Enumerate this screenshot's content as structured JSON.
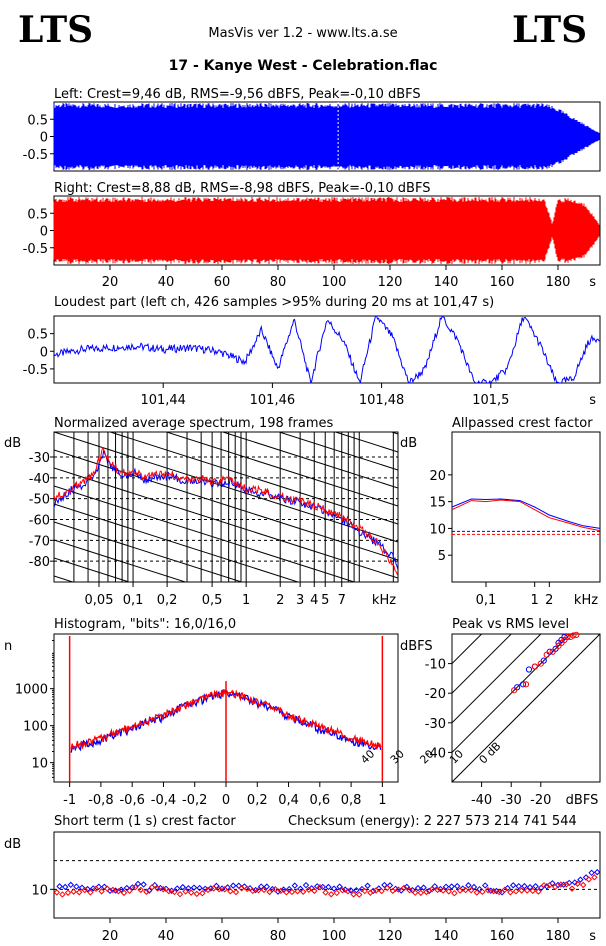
{
  "header": {
    "logo_left": "LTS",
    "logo_right": "LTS",
    "app_line": "MasVis ver 1.2 - www.lts.a.se",
    "track_title": "17 - Kanye West - Celebration.flac"
  },
  "colors": {
    "left": "#0000ff",
    "right": "#ff0000",
    "background": "#ffffff",
    "axis": "#000000"
  },
  "chart_data": [
    {
      "id": "left_waveform",
      "type": "area",
      "title": "Left: Crest=9,46 dB, RMS=-9,56 dBFS, Peak=-0,10 dBFS",
      "ylim": [
        -1,
        1
      ],
      "yticks": [
        "0.5",
        "0",
        "-0.5"
      ],
      "ytick_values": [
        0.5,
        0,
        -0.5
      ],
      "xlim": [
        0,
        195
      ],
      "marker_x": 101.47,
      "grid": false,
      "envelope_note_x": [
        0,
        175,
        180,
        185,
        190,
        195
      ],
      "envelope_amp": [
        1.0,
        1.0,
        0.85,
        0.6,
        0.35,
        0.1
      ]
    },
    {
      "id": "right_waveform",
      "type": "area",
      "title": "Right: Crest=8,88 dB, RMS=-8,98 dBFS, Peak=-0,10 dBFS",
      "ylim": [
        -1,
        1
      ],
      "yticks": [
        "0.5",
        "0",
        "-0.5"
      ],
      "ytick_values": [
        0.5,
        0,
        -0.5
      ],
      "xlim": [
        0,
        195
      ],
      "xticks": [
        "20",
        "40",
        "60",
        "80",
        "100",
        "120",
        "140",
        "160",
        "180"
      ],
      "xtick_values": [
        20,
        40,
        60,
        80,
        100,
        120,
        140,
        160,
        180
      ],
      "xunit": "s",
      "envelope_note_x": [
        0,
        175,
        178,
        180,
        185,
        190,
        195
      ],
      "envelope_amp": [
        1.0,
        1.0,
        0.2,
        1.0,
        0.95,
        0.8,
        0.15
      ]
    },
    {
      "id": "loudest_part",
      "type": "line",
      "title": "Loudest part (left  ch, 426 samples >95% during 20 ms at 101,47 s)",
      "ylim": [
        -0.9,
        1
      ],
      "yticks": [
        "0.5",
        "0",
        "-0.5"
      ],
      "ytick_values": [
        0.5,
        0,
        -0.5
      ],
      "xlim": [
        101.42,
        101.52
      ],
      "xticks": [
        "101,44",
        "101,46",
        "101,48",
        "101,5"
      ],
      "xtick_values": [
        101.44,
        101.46,
        101.48,
        101.5
      ],
      "xunit": "s",
      "series": [
        {
          "values_x": [
            101.42,
            101.425,
            101.43,
            101.435,
            101.44,
            101.445,
            101.45,
            101.455,
            101.458,
            101.461,
            101.464,
            101.467,
            101.47,
            101.473,
            101.476,
            101.479,
            101.482,
            101.485,
            101.488,
            101.491,
            101.494,
            101.497,
            101.5,
            101.503,
            101.506,
            101.509,
            101.512,
            101.515,
            101.518,
            101.52
          ],
          "values_y": [
            -0.1,
            0.05,
            0.1,
            0.15,
            0.05,
            0.1,
            0.0,
            -0.3,
            0.6,
            -0.5,
            0.9,
            -0.9,
            0.9,
            0.3,
            -0.9,
            1.0,
            0.4,
            -0.9,
            -0.5,
            1.0,
            0.3,
            -0.9,
            -0.9,
            -0.5,
            1.0,
            0.2,
            -0.9,
            -0.8,
            0.3,
            0.4
          ]
        }
      ]
    },
    {
      "id": "avg_spectrum",
      "type": "line",
      "title": "Normalized average spectrum, 198 frames",
      "ylabel": "dB",
      "yticks": [
        "-30",
        "-40",
        "-50",
        "-60",
        "-70",
        "-80"
      ],
      "ytick_values": [
        -30,
        -40,
        -50,
        -60,
        -70,
        -80
      ],
      "ylim": [
        -90,
        -18
      ],
      "xscale": "log",
      "xlim": [
        0.02,
        22
      ],
      "xunit": "kHz",
      "xticks": [
        "0,05",
        "0,1",
        "0,2",
        "0,5",
        "1",
        "2",
        "3",
        "4",
        "5",
        "7"
      ],
      "xtick_values": [
        0.05,
        0.1,
        0.2,
        0.5,
        1,
        2,
        3,
        4,
        5,
        7
      ],
      "series": [
        {
          "name_color": "left",
          "x": [
            0.02,
            0.025,
            0.03,
            0.035,
            0.04,
            0.045,
            0.05,
            0.055,
            0.06,
            0.07,
            0.08,
            0.1,
            0.12,
            0.15,
            0.2,
            0.3,
            0.4,
            0.5,
            0.7,
            1,
            1.5,
            2,
            3,
            4,
            5,
            7,
            10,
            14,
            20,
            22
          ],
          "y": [
            -52,
            -48,
            -45,
            -44,
            -41,
            -38,
            -35,
            -28,
            -33,
            -36,
            -40,
            -37,
            -41,
            -40,
            -39,
            -42,
            -41,
            -43,
            -42,
            -46,
            -48,
            -50,
            -52,
            -54,
            -56,
            -60,
            -66,
            -71,
            -78,
            -84
          ]
        },
        {
          "name_color": "right",
          "x": [
            0.02,
            0.025,
            0.03,
            0.035,
            0.04,
            0.045,
            0.05,
            0.055,
            0.06,
            0.07,
            0.08,
            0.1,
            0.12,
            0.15,
            0.2,
            0.3,
            0.4,
            0.5,
            0.7,
            1,
            1.5,
            2,
            3,
            4,
            5,
            7,
            10,
            14,
            20,
            22
          ],
          "y": [
            -50,
            -47,
            -44,
            -43,
            -40,
            -37,
            -32,
            -26,
            -31,
            -35,
            -38,
            -36,
            -40,
            -39,
            -38,
            -41,
            -40,
            -42,
            -41,
            -45,
            -47,
            -49,
            -51,
            -53,
            -55,
            -59,
            -64,
            -70,
            -82,
            -88
          ]
        }
      ]
    },
    {
      "id": "allpassed_crest",
      "type": "line",
      "title": "Allpassed crest factor",
      "ylabel": "dB",
      "yticks": [
        "20",
        "15",
        "10",
        "5"
      ],
      "ytick_values": [
        20,
        15,
        10,
        5
      ],
      "ylim": [
        0,
        28
      ],
      "xscale": "log",
      "xlim": [
        0.02,
        22
      ],
      "xunit": "kHz",
      "xticks": [
        "0,1",
        "1",
        "2"
      ],
      "xtick_values": [
        0.1,
        1,
        2
      ],
      "reference_lines": [
        9.46,
        8.88
      ],
      "series": [
        {
          "name_color": "left",
          "x": [
            0.02,
            0.05,
            0.1,
            0.2,
            0.5,
            1,
            2,
            5,
            10,
            22
          ],
          "y": [
            14.0,
            15.5,
            15.4,
            15.5,
            15.2,
            14.0,
            12.5,
            11.3,
            10.5,
            10.0
          ]
        },
        {
          "name_color": "right",
          "x": [
            0.02,
            0.05,
            0.1,
            0.2,
            0.5,
            1,
            2,
            5,
            10,
            22
          ],
          "y": [
            13.5,
            15.2,
            15.0,
            15.3,
            15.0,
            13.5,
            12.0,
            11.0,
            10.2,
            9.6
          ]
        }
      ]
    },
    {
      "id": "histogram",
      "type": "line",
      "title": "Histogram, \"bits\": 16,0/16,0",
      "ylabel": "n",
      "yscale": "log",
      "ylim": [
        3,
        30000
      ],
      "yticks": [
        "1000",
        "100",
        "10"
      ],
      "ytick_values": [
        1000,
        100,
        10
      ],
      "xlim": [
        -1.1,
        1.1
      ],
      "xticks": [
        "-1",
        "-0,8",
        "-0,6",
        "-0,4",
        "-0,2",
        "0",
        "0,2",
        "0,4",
        "0,6",
        "0,8",
        "1"
      ],
      "xtick_values": [
        -1,
        -0.8,
        -0.6,
        -0.4,
        -0.2,
        0,
        0.2,
        0.4,
        0.6,
        0.8,
        1
      ],
      "series": [
        {
          "name_color": "left",
          "x": [
            -0.99,
            -0.8,
            -0.6,
            -0.4,
            -0.2,
            0,
            0.2,
            0.4,
            0.6,
            0.8,
            0.99
          ],
          "y": [
            25,
            40,
            80,
            170,
            420,
            780,
            420,
            170,
            80,
            40,
            25
          ]
        },
        {
          "name_color": "right",
          "x": [
            -0.99,
            -0.8,
            -0.6,
            -0.4,
            -0.2,
            0,
            0.2,
            0.4,
            0.6,
            0.8,
            0.99
          ],
          "y": [
            28,
            45,
            90,
            180,
            440,
            800,
            440,
            180,
            90,
            45,
            28
          ]
        }
      ],
      "spikes_x": [
        -1,
        0,
        1
      ]
    },
    {
      "id": "peak_vs_rms",
      "type": "scatter",
      "title": "Peak vs RMS level",
      "ylabel": "dBFS",
      "yticks": [
        "-10",
        "-20",
        "-30",
        "-40"
      ],
      "ytick_values": [
        -10,
        -20,
        -30,
        -40
      ],
      "ylim": [
        -50,
        0
      ],
      "xlabel": "dBFS",
      "xticks": [
        "-40",
        "-30",
        "-20"
      ],
      "xtick_values": [
        -40,
        -30,
        -20
      ],
      "xlim": [
        -50,
        0
      ],
      "diagonal_labels": [
        "40",
        "30",
        "20",
        "10",
        "0 dB"
      ],
      "series": [
        {
          "name_color": "left",
          "x": [
            -28,
            -26,
            -24,
            -22,
            -19,
            -17,
            -15,
            -14,
            -13,
            -12,
            -11
          ],
          "y": [
            -18,
            -17,
            -12,
            -11,
            -9,
            -6,
            -5,
            -3,
            -2,
            -1,
            -1
          ]
        },
        {
          "name_color": "right",
          "x": [
            -29,
            -25,
            -22,
            -20,
            -18,
            -16,
            -14,
            -13,
            -12,
            -11,
            -10,
            -9,
            -8
          ],
          "y": [
            -19,
            -17,
            -11,
            -10,
            -7,
            -6,
            -4,
            -3,
            -2,
            -1,
            -1,
            -0.5,
            -0.3
          ]
        }
      ]
    },
    {
      "id": "short_term_crest",
      "type": "scatter",
      "title": "Short term (1 s) crest factor",
      "checksum": "Checksum (energy):  2 227 573 214 741 544",
      "ylabel": "dB",
      "yticks": [
        "10"
      ],
      "ytick_values": [
        10
      ],
      "ylim": [
        0,
        30
      ],
      "dashed_y": [
        20,
        10
      ],
      "xlim": [
        0,
        195
      ],
      "xticks": [
        "20",
        "40",
        "60",
        "80",
        "100",
        "120",
        "140",
        "160",
        "180"
      ],
      "xtick_values": [
        20,
        40,
        60,
        80,
        100,
        120,
        140,
        160,
        180
      ],
      "xunit": "s",
      "series": [
        {
          "name_color": "left",
          "x": [
            2,
            10,
            20,
            30,
            40,
            50,
            60,
            70,
            80,
            90,
            100,
            110,
            120,
            130,
            140,
            150,
            160,
            170,
            180,
            185,
            190,
            193
          ],
          "y": [
            10,
            11,
            10,
            11,
            10,
            10,
            11,
            10,
            10,
            11,
            10,
            10,
            11,
            10,
            10,
            11,
            10,
            11,
            12,
            12,
            14,
            16
          ]
        },
        {
          "name_color": "right",
          "x": [
            3,
            12,
            22,
            32,
            42,
            52,
            62,
            72,
            82,
            92,
            102,
            112,
            122,
            132,
            142,
            152,
            162,
            172,
            181,
            186,
            191,
            194
          ],
          "y": [
            9,
            10,
            9,
            10,
            9,
            9,
            10,
            9,
            9,
            10,
            9,
            9,
            10,
            9,
            9,
            10,
            9,
            10,
            11,
            11,
            13,
            15
          ]
        }
      ]
    }
  ]
}
